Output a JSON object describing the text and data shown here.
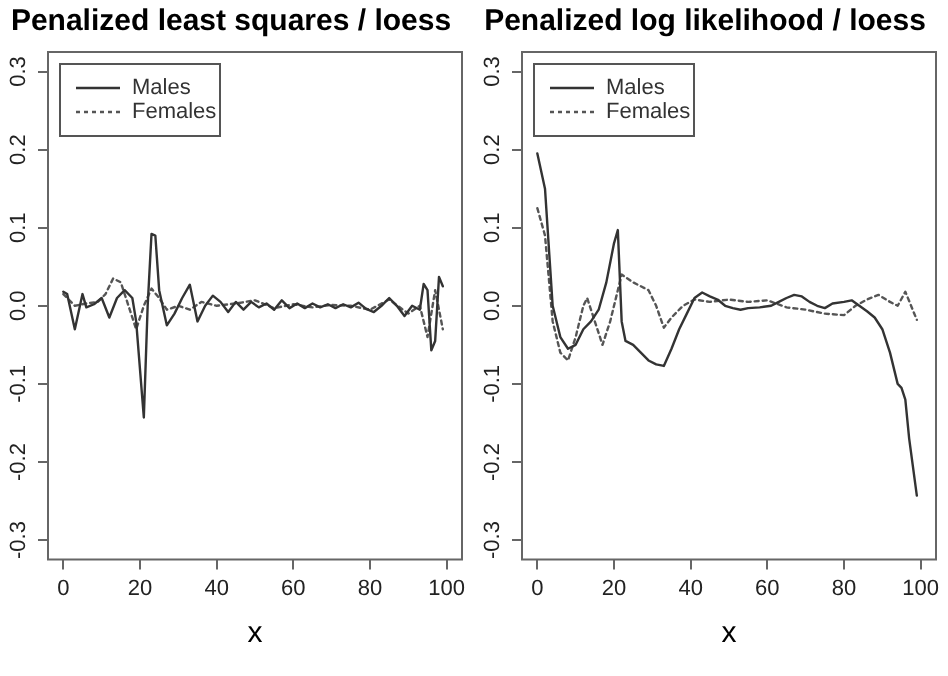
{
  "chart_data": [
    {
      "type": "line",
      "title": "Penalized least squares / loess",
      "xlabel": "x",
      "xlim": [
        -4,
        104
      ],
      "xticks": [
        0,
        20,
        40,
        60,
        80,
        100
      ],
      "ylim": [
        -0.325,
        0.325
      ],
      "yticks": [
        -0.3,
        -0.2,
        -0.1,
        {
          "value": 0,
          "label": "0.0"
        },
        0.1,
        0.2,
        0.3
      ],
      "grid": false,
      "legend": "top left",
      "series": [
        {
          "name": "Males",
          "color": "#333333",
          "line_style": "solid",
          "x": [
            0,
            1,
            3,
            5,
            6,
            8,
            10,
            12,
            14,
            16,
            18,
            19,
            21,
            22,
            23,
            24,
            25,
            27,
            29,
            31,
            33,
            35,
            37,
            39,
            41,
            43,
            45,
            47,
            49,
            51,
            53,
            55,
            57,
            59,
            61,
            63,
            65,
            67,
            69,
            71,
            73,
            75,
            77,
            79,
            81,
            83,
            85,
            87,
            89,
            91,
            93,
            94,
            95,
            96,
            97,
            98,
            99
          ],
          "values": [
            0.018,
            0.015,
            -0.03,
            0.015,
            -0.002,
            0.002,
            0.01,
            -0.015,
            0.01,
            0.02,
            0.01,
            -0.02,
            -0.143,
            0.0,
            0.092,
            0.09,
            0.02,
            -0.025,
            -0.01,
            0.01,
            0.027,
            -0.02,
            0.0,
            0.013,
            0.005,
            -0.008,
            0.005,
            -0.005,
            0.005,
            -0.002,
            0.003,
            -0.005,
            0.007,
            -0.003,
            0.003,
            -0.003,
            0.003,
            -0.002,
            0.002,
            -0.003,
            0.002,
            -0.002,
            0.004,
            -0.004,
            -0.008,
            0.0,
            0.01,
            0.0,
            -0.013,
            0.0,
            -0.005,
            0.028,
            0.02,
            -0.057,
            -0.045,
            0.037,
            0.025
          ]
        },
        {
          "name": "Females",
          "color": "#555555",
          "line_style": "dotted",
          "x": [
            0,
            3,
            6,
            9,
            11,
            13,
            15,
            17,
            19,
            21,
            23,
            25,
            27,
            30,
            33,
            36,
            40,
            45,
            50,
            55,
            60,
            65,
            70,
            75,
            80,
            85,
            90,
            93,
            95,
            97,
            99
          ],
          "values": [
            0.015,
            0.0,
            0.003,
            0.005,
            0.015,
            0.035,
            0.03,
            0.0,
            -0.03,
            0.0,
            0.022,
            0.01,
            -0.005,
            0.0,
            -0.005,
            0.005,
            0.0,
            0.003,
            0.007,
            -0.003,
            0.002,
            -0.002,
            0.001,
            0.0,
            -0.005,
            0.008,
            -0.01,
            0.0,
            -0.04,
            0.02,
            -0.03
          ]
        }
      ]
    },
    {
      "type": "line",
      "title": "Penalized log likelihood / loess",
      "xlabel": "x",
      "xlim": [
        -4,
        104
      ],
      "xticks": [
        0,
        20,
        40,
        60,
        80,
        100
      ],
      "ylim": [
        -0.325,
        0.325
      ],
      "yticks": [
        -0.3,
        -0.2,
        -0.1,
        {
          "value": 0,
          "label": "0.0"
        },
        0.1,
        0.2,
        0.3
      ],
      "grid": false,
      "legend": "top left",
      "series": [
        {
          "name": "Males",
          "color": "#333333",
          "line_style": "solid",
          "x": [
            0,
            2,
            4,
            6,
            8,
            10,
            12,
            14,
            16,
            18,
            20,
            21,
            22,
            23,
            25,
            27,
            29,
            31,
            33,
            35,
            37,
            39,
            41,
            43,
            45,
            47,
            49,
            51,
            53,
            55,
            58,
            61,
            63,
            65,
            67,
            69,
            71,
            73,
            75,
            77,
            80,
            82,
            84,
            86,
            88,
            90,
            92,
            94,
            95,
            96,
            97,
            99
          ],
          "values": [
            0.195,
            0.15,
            0.0,
            -0.04,
            -0.055,
            -0.05,
            -0.03,
            -0.02,
            -0.005,
            0.03,
            0.08,
            0.097,
            -0.02,
            -0.045,
            -0.05,
            -0.06,
            -0.07,
            -0.075,
            -0.077,
            -0.055,
            -0.03,
            -0.01,
            0.01,
            0.017,
            0.012,
            0.008,
            0.0,
            -0.003,
            -0.005,
            -0.003,
            -0.002,
            0.0,
            0.005,
            0.01,
            0.014,
            0.012,
            0.005,
            0.0,
            -0.003,
            0.003,
            0.005,
            0.007,
            0.0,
            -0.007,
            -0.015,
            -0.03,
            -0.06,
            -0.1,
            -0.105,
            -0.12,
            -0.17,
            -0.243
          ]
        },
        {
          "name": "Females",
          "color": "#555555",
          "line_style": "dotted",
          "x": [
            0,
            2,
            4,
            6,
            8,
            10,
            12,
            13,
            15,
            17,
            19,
            21,
            22,
            25,
            29,
            31,
            33,
            35,
            38,
            41,
            45,
            50,
            55,
            60,
            65,
            70,
            75,
            80,
            83,
            86,
            89,
            92,
            94,
            96,
            99
          ],
          "values": [
            0.125,
            0.09,
            -0.02,
            -0.06,
            -0.07,
            -0.04,
            0.0,
            0.01,
            -0.02,
            -0.05,
            -0.02,
            0.02,
            0.04,
            0.03,
            0.02,
            0.0,
            -0.028,
            -0.015,
            0.0,
            0.008,
            0.005,
            0.008,
            0.005,
            0.007,
            -0.002,
            -0.005,
            -0.01,
            -0.012,
            0.0,
            0.008,
            0.014,
            0.005,
            0.0,
            0.018,
            -0.018
          ]
        }
      ]
    }
  ]
}
